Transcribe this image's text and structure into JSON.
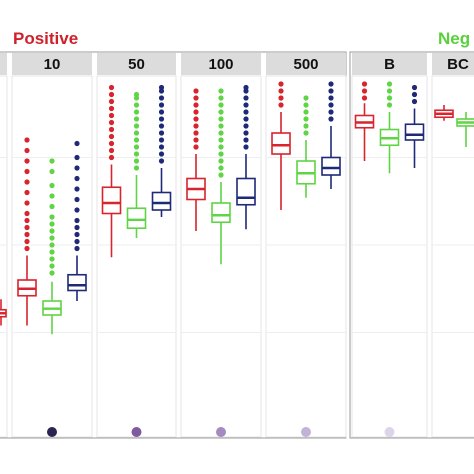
{
  "colors": {
    "positive_label": "#d0202a",
    "negative_label": "#5ad13c",
    "series": [
      "#d9232d",
      "#5fd444",
      "#1e2a78"
    ],
    "strip_bg": "#dcdcdc",
    "panel_bg": "#ffffff",
    "grid": "#eeeeee",
    "frame": "#9a9a9a"
  },
  "chart_data": {
    "type": "box",
    "group_labels": {
      "positive": "Positive",
      "negative": "Neg"
    },
    "ylim": [
      0,
      1
    ],
    "grid": true,
    "panels": [
      {
        "group": "positive",
        "label": "",
        "boxes": [
          {
            "min": 0.27,
            "q1": 0.295,
            "median": 0.305,
            "q3": 0.315,
            "max": 0.345,
            "outliers": []
          }
        ],
        "dot_color": ""
      },
      {
        "group": "positive",
        "label": "10",
        "boxes": [
          {
            "min": 0.27,
            "q1": 0.355,
            "median": 0.375,
            "q3": 0.4,
            "max": 0.47,
            "outliers": [
              0.49,
              0.51,
              0.53,
              0.55,
              0.57,
              0.59,
              0.62,
              0.65,
              0.68,
              0.71,
              0.74,
              0.77,
              0.8
            ]
          },
          {
            "min": 0.245,
            "q1": 0.3,
            "median": 0.318,
            "q3": 0.34,
            "max": 0.395,
            "outliers": [
              0.42,
              0.44,
              0.46,
              0.48,
              0.5,
              0.52,
              0.54,
              0.56,
              0.58,
              0.61,
              0.64,
              0.67,
              0.71,
              0.74
            ]
          },
          {
            "min": 0.34,
            "q1": 0.37,
            "median": 0.385,
            "q3": 0.415,
            "max": 0.47,
            "outliers": [
              0.49,
              0.51,
              0.53,
              0.55,
              0.57,
              0.6,
              0.63,
              0.66,
              0.69,
              0.72,
              0.75,
              0.79
            ]
          }
        ],
        "dot_color": "#2e2450"
      },
      {
        "group": "positive",
        "label": "50",
        "boxes": [
          {
            "min": 0.465,
            "q1": 0.59,
            "median": 0.62,
            "q3": 0.665,
            "max": 0.73,
            "outliers": [
              0.75,
              0.77,
              0.79,
              0.81,
              0.83,
              0.85,
              0.87,
              0.89,
              0.91,
              0.93,
              0.95
            ]
          },
          {
            "min": 0.52,
            "q1": 0.548,
            "median": 0.572,
            "q3": 0.605,
            "max": 0.7,
            "outliers": [
              0.72,
              0.74,
              0.76,
              0.78,
              0.8,
              0.82,
              0.84,
              0.86,
              0.88,
              0.9,
              0.92,
              0.93
            ]
          },
          {
            "min": 0.58,
            "q1": 0.6,
            "median": 0.62,
            "q3": 0.65,
            "max": 0.72,
            "outliers": [
              0.74,
              0.76,
              0.78,
              0.8,
              0.82,
              0.84,
              0.86,
              0.88,
              0.9,
              0.92,
              0.94,
              0.95
            ]
          }
        ],
        "dot_color": "#7e5b9e"
      },
      {
        "group": "positive",
        "label": "100",
        "boxes": [
          {
            "min": 0.54,
            "q1": 0.63,
            "median": 0.66,
            "q3": 0.69,
            "max": 0.76,
            "outliers": [
              0.78,
              0.8,
              0.82,
              0.84,
              0.86,
              0.88,
              0.9,
              0.92,
              0.94
            ]
          },
          {
            "min": 0.445,
            "q1": 0.565,
            "median": 0.585,
            "q3": 0.62,
            "max": 0.68,
            "outliers": [
              0.7,
              0.72,
              0.74,
              0.76,
              0.78,
              0.8,
              0.82,
              0.84,
              0.86,
              0.88,
              0.9,
              0.92,
              0.94
            ]
          },
          {
            "min": 0.545,
            "q1": 0.615,
            "median": 0.635,
            "q3": 0.69,
            "max": 0.76,
            "outliers": [
              0.78,
              0.8,
              0.82,
              0.84,
              0.86,
              0.88,
              0.9,
              0.92,
              0.94,
              0.95
            ]
          }
        ],
        "dot_color": "#a38bbf"
      },
      {
        "group": "positive",
        "label": "500",
        "boxes": [
          {
            "min": 0.6,
            "q1": 0.76,
            "median": 0.785,
            "q3": 0.82,
            "max": 0.88,
            "outliers": [
              0.9,
              0.92,
              0.94,
              0.96
            ]
          },
          {
            "min": 0.635,
            "q1": 0.675,
            "median": 0.705,
            "q3": 0.74,
            "max": 0.8,
            "outliers": [
              0.82,
              0.84,
              0.86,
              0.88,
              0.9,
              0.92
            ]
          },
          {
            "min": 0.66,
            "q1": 0.7,
            "median": 0.72,
            "q3": 0.75,
            "max": 0.84,
            "outliers": [
              0.86,
              0.88,
              0.9,
              0.92,
              0.94,
              0.96
            ]
          }
        ],
        "dot_color": "#c3b2d8"
      },
      {
        "group": "negative",
        "label": "B",
        "boxes": [
          {
            "min": 0.74,
            "q1": 0.835,
            "median": 0.85,
            "q3": 0.87,
            "max": 0.905,
            "outliers": [
              0.92,
              0.94,
              0.96
            ]
          },
          {
            "min": 0.705,
            "q1": 0.785,
            "median": 0.805,
            "q3": 0.83,
            "max": 0.88,
            "outliers": [
              0.9,
              0.92,
              0.94,
              0.96
            ]
          },
          {
            "min": 0.72,
            "q1": 0.8,
            "median": 0.815,
            "q3": 0.845,
            "max": 0.89,
            "outliers": [
              0.91,
              0.93,
              0.95
            ]
          }
        ],
        "dot_color": "#ded4ea"
      },
      {
        "group": "negative",
        "label": "BC",
        "boxes": [
          {
            "min": 0.855,
            "q1": 0.865,
            "median": 0.875,
            "q3": 0.885,
            "max": 0.9,
            "outliers": []
          },
          {
            "min": 0.78,
            "q1": 0.84,
            "median": 0.85,
            "q3": 0.86,
            "max": 0.88,
            "outliers": []
          }
        ],
        "dot_color": ""
      }
    ]
  }
}
